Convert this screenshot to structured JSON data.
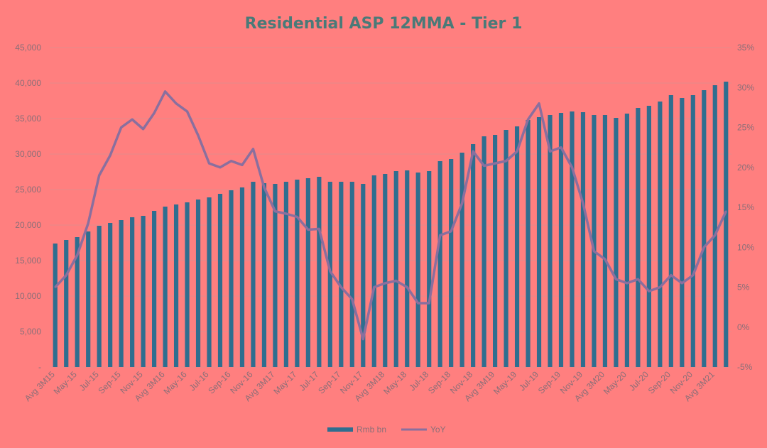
{
  "colors": {
    "background": "#ff7f7f",
    "bar": "#2f6e8f",
    "line": "#8a6f9e",
    "text": "#8a6f78",
    "title": "#4a7a78",
    "gridline": "#e58b8b"
  },
  "chart_data": {
    "type": "bar",
    "title": "Residential ASP 12MMA - Tier 1",
    "xlabel": "",
    "ylabel": "",
    "y_ticks": [
      "-",
      "5,000",
      "10,000",
      "15,000",
      "20,000",
      "25,000",
      "30,000",
      "35,000",
      "40,000",
      "45,000"
    ],
    "y2_ticks": [
      "-5%",
      "0%",
      "5%",
      "10%",
      "15%",
      "20%",
      "25%",
      "30%",
      "35%"
    ],
    "ylim": [
      0,
      45000
    ],
    "y2lim": [
      -5,
      35
    ],
    "grid": true,
    "legend_position": "bottom",
    "x_tick_labels": [
      "Avg 3M15",
      "May-15",
      "Jul-15",
      "Sep-15",
      "Nov-15",
      "Avg 3M16",
      "May-16",
      "Jul-16",
      "Sep-16",
      "Nov-16",
      "Avg 3M17",
      "May-17",
      "Jul-17",
      "Sep-17",
      "Nov-17",
      "Avg 3M18",
      "May-18",
      "Jul-18",
      "Sep-18",
      "Nov-18",
      "Avg 3M19",
      "May-19",
      "Jul-19",
      "Sep-19",
      "Nov-19",
      "Avg 3M20",
      "May-20",
      "Jul-20",
      "Sep-20",
      "Nov-20",
      "Avg 3M21"
    ],
    "series": [
      {
        "name": "Rmb bn",
        "type": "bar",
        "axis": "left",
        "values": [
          17400,
          17900,
          18300,
          19100,
          19900,
          20300,
          20700,
          21100,
          21300,
          22000,
          22600,
          22900,
          23200,
          23600,
          23900,
          24400,
          24900,
          25300,
          26100,
          25900,
          25800,
          26100,
          26400,
          26600,
          26800,
          26100,
          26100,
          26100,
          25800,
          27000,
          27200,
          27600,
          27700,
          27400,
          27600,
          29000,
          29300,
          30200,
          31400,
          32500,
          32700,
          33400,
          33900,
          34800,
          35200,
          35500,
          35800,
          36000,
          35900,
          35500,
          35500,
          35100,
          35700,
          36500,
          36800,
          37400,
          38300,
          37900,
          38300,
          39000,
          39700,
          40200
        ]
      },
      {
        "name": "YoY",
        "type": "line",
        "axis": "right",
        "values": [
          5.0,
          6.5,
          9.0,
          13.0,
          19.0,
          21.5,
          25.0,
          26.0,
          24.8,
          26.8,
          29.5,
          28.0,
          27.0,
          24.0,
          20.5,
          20.0,
          20.8,
          20.3,
          22.3,
          17.5,
          14.5,
          14.2,
          13.8,
          12.2,
          12.3,
          7.0,
          5.0,
          3.5,
          -1.5,
          5.0,
          5.5,
          5.8,
          5.0,
          3.0,
          3.0,
          11.5,
          12.0,
          15.5,
          22.0,
          20.2,
          20.5,
          20.8,
          22.0,
          26.0,
          28.0,
          22.0,
          22.5,
          20.0,
          15.5,
          9.5,
          8.5,
          6.0,
          5.5,
          6.0,
          4.5,
          5.0,
          6.5,
          5.5,
          6.5,
          10.0,
          11.5,
          14.5
        ]
      }
    ]
  }
}
